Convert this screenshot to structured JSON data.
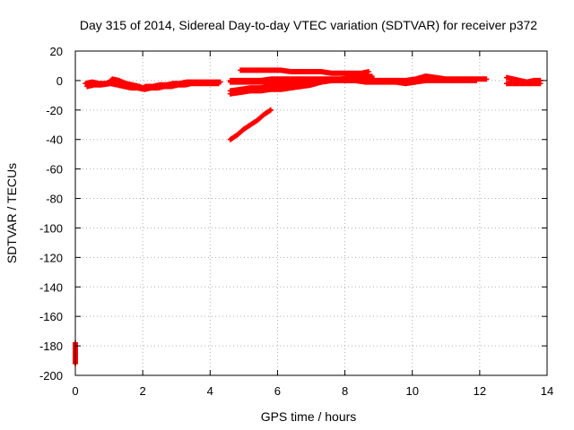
{
  "chart_data": {
    "type": "scatter",
    "title": "Day 315 of 2014, Sidereal Day-to-day VTEC variation (SDTVAR) for receiver p372",
    "xlabel": "GPS time / hours",
    "ylabel": "SDTVAR / TECUs",
    "xlim": [
      0,
      14
    ],
    "ylim": [
      -200,
      20
    ],
    "xticks": [
      0,
      2,
      4,
      6,
      8,
      10,
      12,
      14
    ],
    "yticks": [
      20,
      0,
      -20,
      -40,
      -60,
      -80,
      -100,
      -120,
      -140,
      -160,
      -180,
      -200
    ],
    "grid": true,
    "marker": "plus",
    "color": "#ff0000",
    "series": [
      {
        "x": [
          0.3,
          0.5,
          0.7,
          0.9,
          1.0,
          1.1,
          1.3,
          1.5,
          1.7,
          1.9,
          2.0,
          2.1,
          2.3,
          2.5,
          2.7,
          2.9,
          3.1,
          3.3,
          3.5,
          3.7,
          3.9,
          4.1,
          4.3
        ],
        "y": [
          -2,
          -1,
          -2,
          -2,
          -1,
          1,
          0,
          -2,
          -3,
          -4,
          -5,
          -4,
          -4,
          -3,
          -3,
          -2,
          -2,
          -1,
          -1,
          -1,
          -1,
          -1,
          -1
        ]
      },
      {
        "x": [
          0.35,
          0.55,
          0.75,
          1.05,
          1.25,
          1.45,
          1.65,
          1.85,
          2.05,
          2.25,
          2.45,
          2.65,
          2.85,
          3.05,
          3.25,
          3.45,
          3.65,
          3.85,
          4.05,
          4.25
        ],
        "y": [
          -4,
          -3,
          -3,
          -2,
          -3,
          -4,
          -5,
          -5,
          -6,
          -5,
          -5,
          -4,
          -4,
          -3,
          -3,
          -2,
          -2,
          -2,
          -2,
          -2
        ]
      },
      {
        "x": [
          4.6,
          4.8,
          5.0,
          5.2,
          5.4,
          5.6,
          5.8
        ],
        "y": [
          -40,
          -37,
          -33,
          -30,
          -27,
          -23,
          -20
        ]
      },
      {
        "x": [
          4.6,
          4.9,
          5.2,
          5.5,
          5.8,
          6.1,
          6.4,
          6.7,
          7.0,
          7.3,
          7.6,
          7.9,
          8.2,
          8.5,
          8.8
        ],
        "y": [
          -9,
          -8,
          -7,
          -7,
          -6,
          -6,
          -5,
          -4,
          -3,
          -1,
          0,
          1,
          2,
          2,
          3
        ]
      },
      {
        "x": [
          4.6,
          4.9,
          5.2,
          5.5,
          5.8,
          6.1,
          6.4,
          6.7,
          7.0,
          7.3,
          7.6,
          7.9,
          8.2,
          8.5,
          8.8
        ],
        "y": [
          -7,
          -6,
          -5,
          -5,
          -4,
          -4,
          -3,
          -3,
          -2,
          -1,
          0,
          1,
          1,
          1,
          2
        ]
      },
      {
        "x": [
          4.6,
          4.9,
          5.2,
          5.5,
          5.8,
          6.1,
          6.4,
          6.7,
          7.0,
          7.3,
          7.6,
          7.9,
          8.2,
          8.5,
          8.8
        ],
        "y": [
          0,
          0,
          0,
          0,
          1,
          1,
          1,
          1,
          1,
          1,
          1,
          1,
          1,
          1,
          1
        ]
      },
      {
        "x": [
          4.6,
          4.9,
          5.2,
          5.5,
          5.8,
          6.1,
          6.4,
          6.7,
          7.0,
          7.3,
          7.6,
          7.9,
          8.2,
          8.5,
          8.8
        ],
        "y": [
          -1,
          -1,
          -1,
          -1,
          -1,
          -1,
          -1,
          0,
          0,
          0,
          0,
          0,
          0,
          0,
          0
        ]
      },
      {
        "x": [
          4.9,
          5.2,
          5.5,
          5.8,
          6.1,
          6.4,
          6.7,
          7.0,
          7.3,
          7.6,
          7.9,
          8.2,
          8.5,
          8.7
        ],
        "y": [
          7,
          7,
          7,
          7,
          7,
          6,
          6,
          6,
          6,
          5,
          5,
          5,
          5,
          6
        ]
      },
      {
        "x": [
          8.0,
          8.3,
          8.6,
          8.9,
          9.2,
          9.5,
          9.8,
          10.1,
          10.4,
          10.7,
          11.0,
          11.3,
          11.6,
          11.9,
          12.2
        ],
        "y": [
          1,
          1,
          1,
          0,
          0,
          0,
          0,
          1,
          3,
          2,
          1,
          1,
          1,
          1,
          1
        ]
      },
      {
        "x": [
          8.0,
          8.3,
          8.6,
          8.9,
          9.2,
          9.5,
          9.8,
          10.1,
          10.4,
          10.7,
          11.0,
          11.3,
          11.6,
          11.9
        ],
        "y": [
          0,
          0,
          -1,
          -1,
          -1,
          -1,
          -2,
          -1,
          0,
          0,
          0,
          0,
          0,
          0
        ]
      },
      {
        "x": [
          12.8,
          13.0,
          13.2,
          13.4,
          13.6,
          13.8
        ],
        "y": [
          2,
          1,
          0,
          -1,
          0,
          0
        ]
      },
      {
        "x": [
          12.8,
          13.0,
          13.2,
          13.4,
          13.6,
          13.8
        ],
        "y": [
          -2,
          -2,
          -2,
          -2,
          -2,
          -2
        ]
      },
      {
        "x": [
          0.0,
          0.0
        ],
        "y": [
          -178,
          -192
        ]
      }
    ]
  }
}
